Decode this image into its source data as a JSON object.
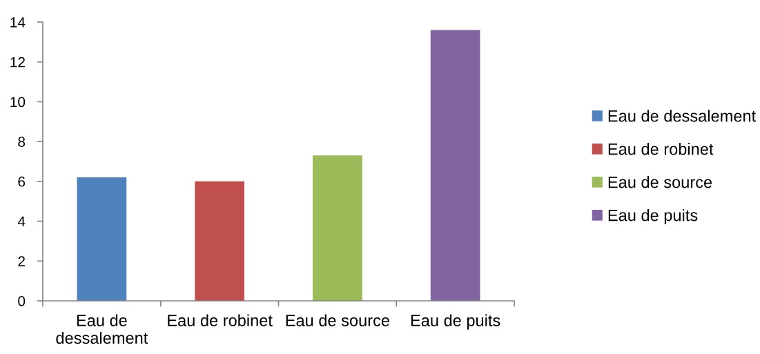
{
  "chart_data": {
    "type": "bar",
    "categories": [
      "Eau de dessalement",
      "Eau de robinet",
      "Eau de source",
      "Eau de puits"
    ],
    "series": [
      {
        "name": "Eau de dessalement",
        "color": "#4f81bd",
        "values": [
          6.2,
          null,
          null,
          null
        ]
      },
      {
        "name": "Eau de robinet",
        "color": "#c0504d",
        "values": [
          null,
          6.0,
          null,
          null
        ]
      },
      {
        "name": "Eau de source",
        "color": "#9bbb59",
        "values": [
          null,
          null,
          7.3,
          null
        ]
      },
      {
        "name": "Eau de puits",
        "color": "#8064a2",
        "values": [
          null,
          null,
          null,
          13.6
        ]
      }
    ],
    "ylim": [
      0,
      14
    ],
    "yticks": [
      0,
      2,
      4,
      6,
      8,
      10,
      12,
      14
    ],
    "legend": "right",
    "grid": false
  }
}
